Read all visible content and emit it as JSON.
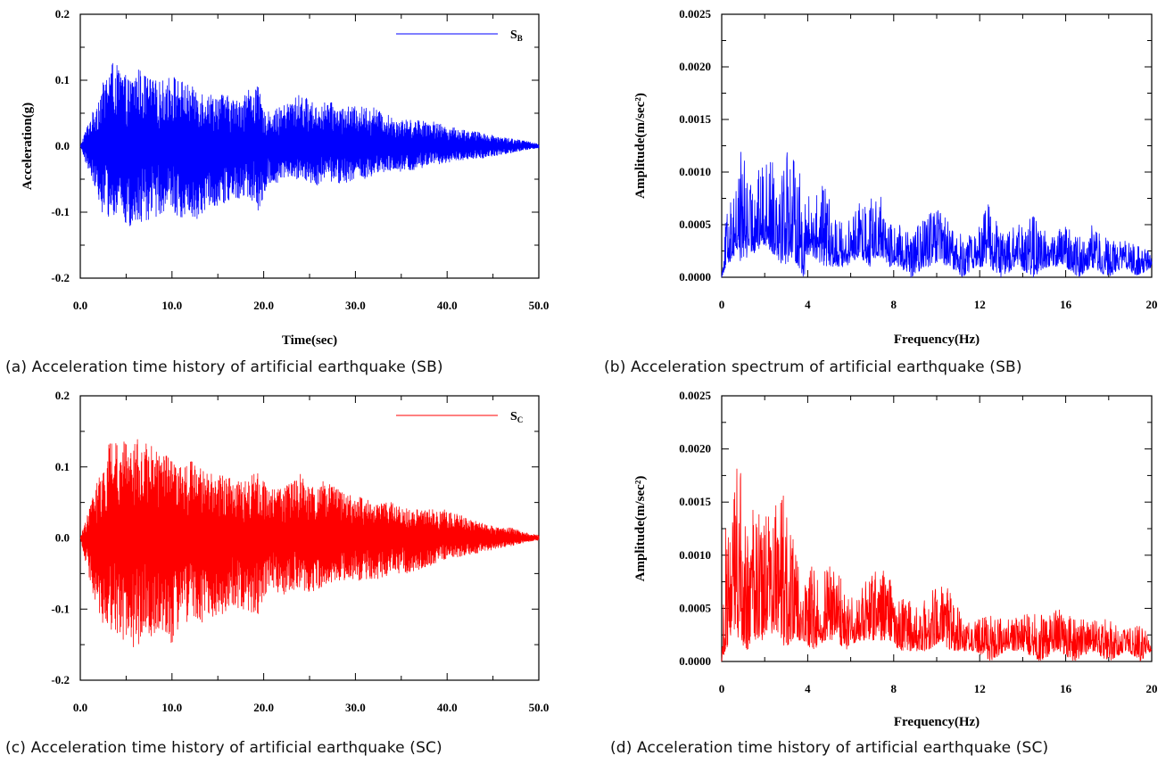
{
  "captions": {
    "a": "(a) Acceleration time history of artificial earthquake (SB)",
    "b": "(b) Acceleration spectrum of artificial earthquake (SB)",
    "c": "(c) Acceleration time history of artificial earthquake (SC)",
    "d": "(d) Acceleration time history of artificial earthquake (SC)"
  },
  "chart_data": [
    {
      "id": "a",
      "type": "line",
      "xlabel": "Time(sec)",
      "ylabel": "Acceleration(g)",
      "xlim": [
        0,
        50
      ],
      "ylim": [
        -0.2,
        0.2
      ],
      "xticks": [
        0,
        10,
        20,
        30,
        40,
        50
      ],
      "xtick_labels": [
        "0.0",
        "10.0",
        "20.0",
        "30.0",
        "40.0",
        "50.0"
      ],
      "yticks": [
        0.2,
        0.1,
        0.0,
        -0.1,
        -0.2
      ],
      "ytick_labels": [
        "0.2",
        "0.1",
        "0.0",
        "-0.1",
        "-0.2"
      ],
      "legend": {
        "main": "S",
        "sub": "B",
        "placement": "top-right"
      },
      "color": "#0000ff",
      "series": [
        {
          "name": "SB",
          "x": [
            0,
            0.7,
            1.6,
            2.3,
            3.4,
            4.2,
            5.4,
            6.3,
            6.9,
            8.0,
            9.0,
            10.0,
            11.0,
            12.1,
            12.6,
            14.0,
            15.6,
            17.0,
            18.5,
            19.4,
            20.1,
            22.0,
            24.0,
            26.0,
            27.0,
            28.0,
            30.0,
            32.0,
            33.0,
            35.0,
            37.0,
            38.0,
            40.0,
            42.0,
            44.0,
            45.5,
            47.0,
            48.5,
            50.0
          ],
          "y_max": [
            0.0,
            0.03,
            0.06,
            0.09,
            0.13,
            0.12,
            0.1,
            0.12,
            0.11,
            0.1,
            0.1,
            0.11,
            0.1,
            0.09,
            0.09,
            0.08,
            0.08,
            0.07,
            0.09,
            0.09,
            0.05,
            0.06,
            0.08,
            0.06,
            0.07,
            0.06,
            0.06,
            0.06,
            0.05,
            0.04,
            0.04,
            0.04,
            0.03,
            0.025,
            0.02,
            0.015,
            0.012,
            0.008,
            0.004
          ],
          "y_min": [
            0.0,
            -0.03,
            -0.06,
            -0.1,
            -0.11,
            -0.1,
            -0.13,
            -0.12,
            -0.12,
            -0.11,
            -0.1,
            -0.1,
            -0.11,
            -0.1,
            -0.12,
            -0.09,
            -0.09,
            -0.08,
            -0.08,
            -0.1,
            -0.07,
            -0.05,
            -0.05,
            -0.06,
            -0.05,
            -0.06,
            -0.05,
            -0.05,
            -0.04,
            -0.04,
            -0.035,
            -0.03,
            -0.025,
            -0.02,
            -0.018,
            -0.014,
            -0.01,
            -0.006,
            -0.003
          ]
        }
      ]
    },
    {
      "id": "b",
      "type": "line",
      "xlabel": "Frequency(Hz)",
      "ylabel": "Amplitude(m/sec²)",
      "xlim": [
        0,
        20
      ],
      "ylim": [
        0,
        0.0025
      ],
      "xticks": [
        0,
        4,
        8,
        12,
        16,
        20
      ],
      "xtick_labels": [
        "0",
        "4",
        "8",
        "12",
        "16",
        "20"
      ],
      "yticks": [
        0.0025,
        0.002,
        0.0015,
        0.001,
        0.0005,
        0
      ],
      "ytick_labels": [
        "0.0025",
        "0.0020",
        "0.0015",
        "0.0010",
        "0.0005",
        "0.0000"
      ],
      "color": "#0000ff",
      "series": [
        {
          "name": "SB",
          "x": [
            0,
            0.2,
            0.6,
            0.9,
            1.3,
            2.0,
            2.5,
            2.9,
            3.3,
            3.8,
            4.2,
            4.8,
            5.2,
            5.8,
            6.4,
            6.9,
            7.3,
            7.8,
            8.3,
            8.8,
            9.5,
            10.1,
            10.6,
            11.2,
            11.8,
            12.4,
            13.0,
            13.8,
            14.5,
            15.2,
            16.0,
            16.6,
            17.2,
            18.0,
            18.7,
            19.3,
            20.0
          ],
          "y_max": [
            0.0,
            0.0006,
            0.00085,
            0.00125,
            0.0009,
            0.0011,
            0.00125,
            0.00135,
            0.00115,
            0.0009,
            0.00075,
            0.0009,
            0.0006,
            0.0005,
            0.0007,
            0.00075,
            0.00085,
            0.0005,
            0.0005,
            0.0004,
            0.0006,
            0.0007,
            0.0005,
            0.0004,
            0.0004,
            0.00075,
            0.00045,
            0.0005,
            0.0006,
            0.0004,
            0.0005,
            0.0004,
            0.0005,
            0.00035,
            0.00035,
            0.0003,
            0.00025
          ],
          "y_min": [
            0.0,
            0.0001,
            0.0002,
            0.00015,
            0.0002,
            0.0003,
            0.0002,
            0.0001,
            0.0002,
            0.0,
            0.0002,
            0.0001,
            0.0001,
            0.0001,
            0.0002,
            0.0001,
            0.0002,
            0.0001,
            0.0001,
            0.0,
            0.0001,
            0.0001,
            0.0001,
            0.0,
            0.0001,
            0.0001,
            0.0,
            0.0001,
            0.0,
            0.0001,
            0.0001,
            0.0,
            0.0001,
            0.0,
            0.0001,
            0.0,
            0.0001
          ]
        }
      ]
    },
    {
      "id": "c",
      "type": "line",
      "xlabel": "",
      "ylabel": "",
      "xlim": [
        0,
        50
      ],
      "ylim": [
        -0.2,
        0.2
      ],
      "xticks": [
        0,
        10,
        20,
        30,
        40,
        50
      ],
      "xtick_labels": [
        "0.0",
        "10.0",
        "20.0",
        "30.0",
        "40.0",
        "50.0"
      ],
      "yticks": [
        0.2,
        0.1,
        0.0,
        -0.1,
        -0.2
      ],
      "ytick_labels": [
        "0.2",
        "0.1",
        "0.0",
        "-0.1",
        "-0.2"
      ],
      "legend": {
        "main": "S",
        "sub": "C",
        "placement": "top-right"
      },
      "color": "#ff0000",
      "series": [
        {
          "name": "SC",
          "x": [
            0,
            0.7,
            1.6,
            2.3,
            3.3,
            4.2,
            5.4,
            6.2,
            6.8,
            8.0,
            9.0,
            10.0,
            11.0,
            12.1,
            13.0,
            14.0,
            15.5,
            17.0,
            18.0,
            19.4,
            20.5,
            22.0,
            24.0,
            25.0,
            26.5,
            28.0,
            30.0,
            32.0,
            34.0,
            36.0,
            38.0,
            40.0,
            42.0,
            44.0,
            45.5,
            47.0,
            48.5,
            50.0
          ],
          "y_max": [
            0.0,
            0.03,
            0.07,
            0.1,
            0.14,
            0.14,
            0.14,
            0.14,
            0.14,
            0.13,
            0.12,
            0.11,
            0.1,
            0.11,
            0.1,
            0.09,
            0.09,
            0.08,
            0.08,
            0.1,
            0.07,
            0.07,
            0.09,
            0.07,
            0.08,
            0.07,
            0.06,
            0.05,
            0.05,
            0.04,
            0.04,
            0.04,
            0.03,
            0.02,
            0.015,
            0.015,
            0.008,
            0.004
          ],
          "y_min": [
            0.0,
            -0.04,
            -0.09,
            -0.12,
            -0.13,
            -0.14,
            -0.15,
            -0.16,
            -0.13,
            -0.14,
            -0.13,
            -0.15,
            -0.13,
            -0.11,
            -0.12,
            -0.12,
            -0.11,
            -0.1,
            -0.1,
            -0.11,
            -0.07,
            -0.08,
            -0.07,
            -0.08,
            -0.07,
            -0.06,
            -0.06,
            -0.06,
            -0.05,
            -0.05,
            -0.04,
            -0.03,
            -0.025,
            -0.02,
            -0.015,
            -0.012,
            -0.006,
            -0.003
          ]
        }
      ]
    },
    {
      "id": "d",
      "type": "line",
      "xlabel": "Frequency(Hz)",
      "ylabel": "Amplitude(m/sec²)",
      "xlim": [
        0,
        20
      ],
      "ylim": [
        0,
        0.0025
      ],
      "xticks": [
        0,
        4,
        8,
        12,
        16,
        20
      ],
      "xtick_labels": [
        "0",
        "4",
        "8",
        "12",
        "16",
        "20"
      ],
      "yticks": [
        0.0025,
        0.002,
        0.0015,
        0.001,
        0.0005,
        0
      ],
      "ytick_labels": [
        "0.0025",
        "0.0020",
        "0.0015",
        "0.0010",
        "0.0005",
        "0.0000"
      ],
      "color": "#ff0000",
      "series": [
        {
          "name": "SC",
          "x": [
            0,
            0.2,
            0.5,
            0.8,
            1.2,
            1.6,
            2.0,
            2.5,
            2.9,
            3.3,
            3.8,
            4.2,
            4.8,
            5.3,
            5.8,
            6.3,
            6.8,
            7.3,
            7.8,
            8.3,
            9.0,
            9.6,
            10.2,
            10.6,
            11.2,
            11.8,
            12.5,
            13.2,
            14.0,
            14.8,
            15.6,
            16.4,
            17.2,
            18.0,
            18.8,
            19.5,
            20.0
          ],
          "y_max": [
            0.0,
            0.00135,
            0.0014,
            0.00205,
            0.0012,
            0.00165,
            0.00135,
            0.0015,
            0.0016,
            0.0012,
            0.0008,
            0.0009,
            0.00095,
            0.001,
            0.0006,
            0.0006,
            0.0008,
            0.0009,
            0.0008,
            0.0006,
            0.00055,
            0.0006,
            0.0008,
            0.0007,
            0.0004,
            0.0004,
            0.00045,
            0.0004,
            0.00045,
            0.00045,
            0.0005,
            0.0004,
            0.0004,
            0.0004,
            0.0003,
            0.00035,
            0.0002
          ],
          "y_min": [
            0.0,
            0.0001,
            0.0003,
            0.0002,
            0.0001,
            0.0002,
            0.0002,
            0.0003,
            0.0001,
            0.0002,
            0.0002,
            0.0001,
            0.0002,
            0.0002,
            0.0001,
            0.0002,
            0.0002,
            0.0002,
            0.0002,
            0.0001,
            0.0001,
            0.0001,
            0.0002,
            0.0001,
            0.0001,
            0.0001,
            0.0,
            0.0001,
            0.0001,
            0.0,
            0.0001,
            0.0,
            0.0001,
            0.0,
            0.0001,
            0.0,
            0.0001
          ]
        }
      ]
    }
  ]
}
